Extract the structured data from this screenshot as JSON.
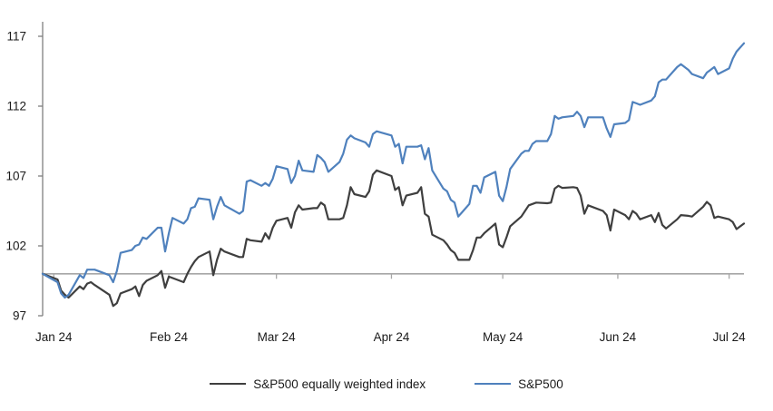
{
  "colors": {
    "background": "#ffffff",
    "y_axis": "#7f7f7f",
    "baseline_100": "#a6a6a6",
    "text": "#1a1a1a",
    "sp500_equal_weight": "#3f3f3f",
    "sp500": "#4f81bd"
  },
  "chart_data": {
    "type": "line",
    "title": "",
    "xlabel": "",
    "ylabel": "",
    "grid": false,
    "legend_position": "bottom",
    "ylim": [
      97,
      117
    ],
    "y_ticks": [
      97,
      102,
      107,
      112,
      117
    ],
    "baseline_value": 100,
    "x_tick_labels": [
      "Jan 24",
      "Feb 24",
      "Mar 24",
      "Apr 24",
      "May 24",
      "Jun 24",
      "Jul 24"
    ],
    "x_tick_dates": [
      "2024-01-01",
      "2024-02-01",
      "2024-03-01",
      "2024-04-01",
      "2024-05-01",
      "2024-06-01",
      "2024-07-01"
    ],
    "x_range": [
      "2023-12-29",
      "2024-07-05"
    ],
    "x": [
      "2023-12-29",
      "2024-01-02",
      "2024-01-03",
      "2024-01-04",
      "2024-01-05",
      "2024-01-08",
      "2024-01-09",
      "2024-01-10",
      "2024-01-11",
      "2024-01-12",
      "2024-01-16",
      "2024-01-17",
      "2024-01-18",
      "2024-01-19",
      "2024-01-22",
      "2024-01-23",
      "2024-01-24",
      "2024-01-25",
      "2024-01-26",
      "2024-01-29",
      "2024-01-30",
      "2024-01-31",
      "2024-02-01",
      "2024-02-02",
      "2024-02-05",
      "2024-02-06",
      "2024-02-07",
      "2024-02-08",
      "2024-02-09",
      "2024-02-12",
      "2024-02-13",
      "2024-02-14",
      "2024-02-15",
      "2024-02-16",
      "2024-02-20",
      "2024-02-21",
      "2024-02-22",
      "2024-02-23",
      "2024-02-26",
      "2024-02-27",
      "2024-02-28",
      "2024-02-29",
      "2024-03-01",
      "2024-03-04",
      "2024-03-05",
      "2024-03-06",
      "2024-03-07",
      "2024-03-08",
      "2024-03-11",
      "2024-03-12",
      "2024-03-13",
      "2024-03-14",
      "2024-03-15",
      "2024-03-18",
      "2024-03-19",
      "2024-03-20",
      "2024-03-21",
      "2024-03-22",
      "2024-03-25",
      "2024-03-26",
      "2024-03-27",
      "2024-03-28",
      "2024-04-01",
      "2024-04-02",
      "2024-04-03",
      "2024-04-04",
      "2024-04-05",
      "2024-04-08",
      "2024-04-09",
      "2024-04-10",
      "2024-04-11",
      "2024-04-12",
      "2024-04-15",
      "2024-04-16",
      "2024-04-17",
      "2024-04-18",
      "2024-04-19",
      "2024-04-22",
      "2024-04-23",
      "2024-04-24",
      "2024-04-25",
      "2024-04-26",
      "2024-04-29",
      "2024-04-30",
      "2024-05-01",
      "2024-05-02",
      "2024-05-03",
      "2024-05-06",
      "2024-05-07",
      "2024-05-08",
      "2024-05-09",
      "2024-05-10",
      "2024-05-13",
      "2024-05-14",
      "2024-05-15",
      "2024-05-16",
      "2024-05-17",
      "2024-05-20",
      "2024-05-21",
      "2024-05-22",
      "2024-05-23",
      "2024-05-24",
      "2024-05-28",
      "2024-05-29",
      "2024-05-30",
      "2024-05-31",
      "2024-06-03",
      "2024-06-04",
      "2024-06-05",
      "2024-06-06",
      "2024-06-07",
      "2024-06-10",
      "2024-06-11",
      "2024-06-12",
      "2024-06-13",
      "2024-06-14",
      "2024-06-17",
      "2024-06-18",
      "2024-06-20",
      "2024-06-21",
      "2024-06-24",
      "2024-06-25",
      "2024-06-26",
      "2024-06-27",
      "2024-06-28",
      "2024-07-01",
      "2024-07-02",
      "2024-07-03",
      "2024-07-05"
    ],
    "series": [
      {
        "name": "S&P500 equally weighted index",
        "color": "#3f3f3f",
        "values": [
          100.0,
          99.6,
          98.8,
          98.5,
          98.3,
          99.1,
          98.9,
          99.3,
          99.4,
          99.2,
          98.5,
          97.7,
          97.9,
          98.6,
          98.9,
          99.1,
          98.4,
          99.2,
          99.5,
          99.9,
          100.2,
          99.0,
          99.8,
          99.7,
          99.4,
          100.0,
          100.5,
          100.9,
          101.2,
          101.6,
          99.9,
          101.0,
          101.8,
          101.6,
          101.2,
          101.2,
          102.5,
          102.4,
          102.3,
          102.9,
          102.5,
          103.3,
          103.8,
          104.0,
          103.3,
          104.4,
          104.9,
          104.6,
          104.7,
          104.7,
          105.1,
          104.9,
          103.9,
          103.9,
          104.0,
          104.9,
          106.2,
          105.7,
          105.5,
          105.9,
          107.1,
          107.4,
          107.0,
          106.0,
          106.2,
          104.9,
          105.6,
          105.8,
          106.2,
          104.3,
          104.1,
          102.8,
          102.4,
          102.1,
          101.7,
          101.5,
          101.0,
          101.0,
          101.7,
          102.6,
          102.6,
          102.9,
          103.6,
          102.1,
          101.9,
          102.6,
          103.4,
          104.1,
          104.5,
          104.9,
          105.0,
          105.1,
          105.05,
          105.1,
          106.1,
          106.3,
          106.15,
          106.2,
          106.15,
          105.6,
          104.3,
          104.9,
          104.5,
          104.2,
          103.1,
          104.6,
          104.2,
          103.9,
          104.5,
          104.3,
          103.9,
          104.2,
          103.7,
          104.35,
          103.5,
          103.25,
          103.9,
          104.2,
          104.15,
          104.1,
          104.8,
          105.15,
          104.9,
          104.0,
          104.1,
          103.9,
          103.7,
          103.2,
          103.6
        ]
      },
      {
        "name": "S&P500",
        "color": "#4f81bd",
        "values": [
          100.0,
          99.4,
          98.6,
          98.3,
          98.5,
          99.9,
          99.7,
          100.3,
          100.3,
          100.3,
          99.9,
          99.4,
          100.2,
          101.5,
          101.7,
          102.0,
          102.1,
          102.6,
          102.5,
          103.3,
          103.3,
          101.6,
          102.9,
          104.0,
          103.6,
          103.9,
          104.7,
          104.8,
          105.4,
          105.3,
          103.9,
          104.8,
          105.5,
          104.9,
          104.3,
          104.5,
          106.6,
          106.7,
          106.3,
          106.5,
          106.3,
          106.8,
          107.7,
          107.5,
          106.5,
          107.0,
          108.1,
          107.4,
          107.3,
          108.5,
          108.3,
          108.0,
          107.3,
          108.0,
          108.6,
          109.6,
          109.9,
          109.7,
          109.4,
          109.1,
          110.0,
          110.2,
          109.9,
          109.1,
          109.3,
          107.9,
          109.1,
          109.1,
          109.2,
          108.2,
          109.0,
          107.4,
          106.1,
          105.9,
          105.3,
          105.1,
          104.1,
          105.0,
          106.3,
          106.3,
          105.8,
          106.9,
          107.3,
          105.6,
          105.2,
          106.2,
          107.5,
          108.6,
          108.8,
          108.8,
          109.3,
          109.5,
          109.5,
          110.0,
          111.3,
          111.1,
          111.2,
          111.3,
          111.6,
          111.3,
          110.5,
          111.2,
          111.2,
          110.4,
          109.8,
          110.7,
          110.8,
          111.0,
          112.3,
          112.2,
          112.1,
          112.4,
          112.7,
          113.7,
          113.9,
          113.9,
          114.8,
          115.0,
          114.6,
          114.3,
          114.0,
          114.4,
          114.6,
          114.8,
          114.3,
          114.7,
          115.4,
          115.9,
          116.5
        ]
      }
    ]
  }
}
